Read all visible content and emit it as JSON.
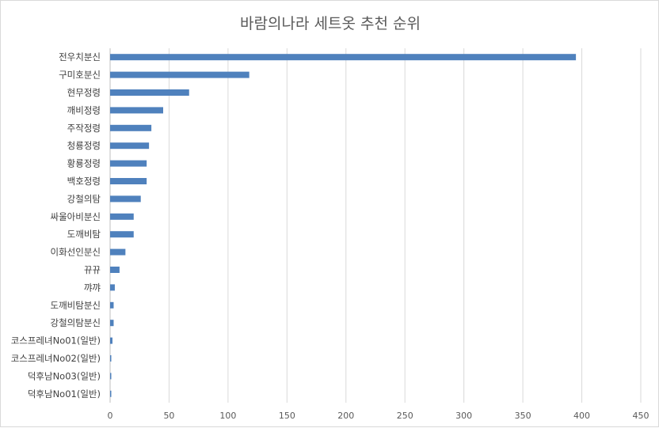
{
  "chart_data": {
    "type": "bar",
    "orientation": "horizontal",
    "title": "바람의나라 세트옷 추천 순위",
    "xlabel": "",
    "ylabel": "",
    "categories": [
      "전우치분신",
      "구미호분신",
      "현무정령",
      "깨비정령",
      "주작정령",
      "청룡정령",
      "황룡정령",
      "백호정령",
      "강철의탐",
      "싸울아비분신",
      "도깨비탐",
      "이화선인분신",
      "뀨뀨",
      "꺄꺄",
      "도깨비탐분신",
      "강철의탐분신",
      "코스프레녀No01(일반)",
      "코스프레녀No02(일반)",
      "덕후남No03(일반)",
      "덕후남No01(일반)"
    ],
    "values": [
      395,
      118,
      67,
      45,
      35,
      33,
      31,
      31,
      26,
      20,
      20,
      13,
      8,
      4,
      3,
      3,
      2,
      1,
      1,
      1
    ],
    "xlim": [
      0,
      450
    ],
    "xticks": [
      0,
      50,
      100,
      150,
      200,
      250,
      300,
      350,
      400,
      450
    ],
    "grid": "vertical",
    "legend": "none",
    "bar_color": "#4f81bd",
    "grid_color": "#d9d9d9"
  }
}
